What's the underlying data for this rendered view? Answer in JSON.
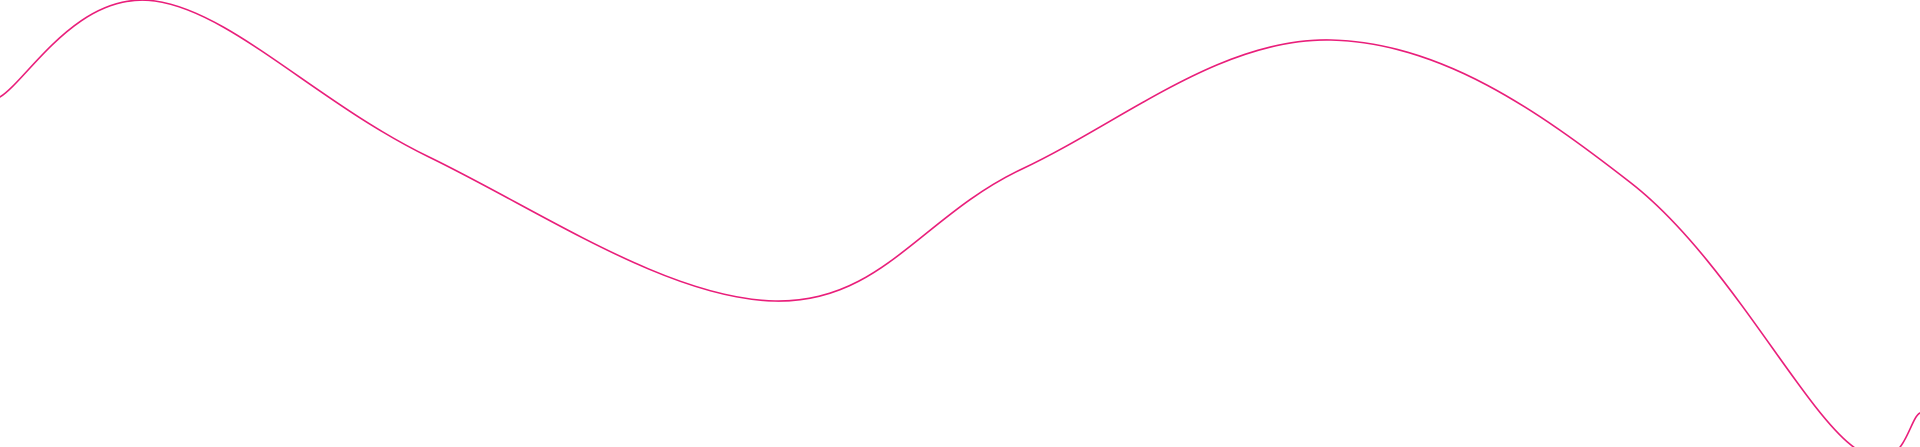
{
  "decoration": {
    "type": "wave-line",
    "stroke_color": "#e91e7a",
    "background_color": "#ffffff"
  }
}
